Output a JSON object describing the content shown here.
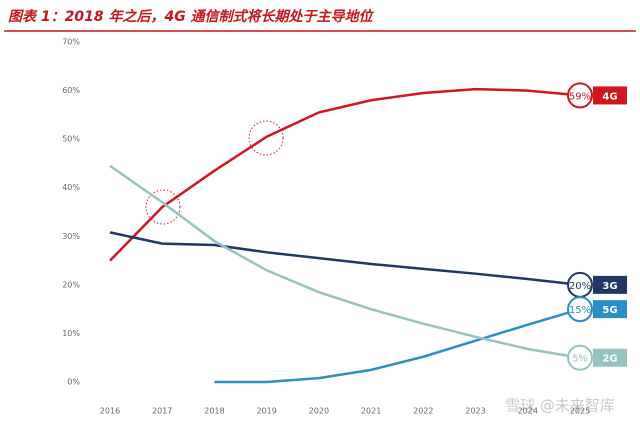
{
  "chart_data": {
    "type": "line",
    "title": "图表 1：2018 年之后，4G 通信制式将长期处于主导地位",
    "watermark": "雪球 @未来智库",
    "categories": [
      "2016",
      "2017",
      "2018",
      "2019",
      "2020",
      "2021",
      "2022",
      "2023",
      "2024",
      "2025"
    ],
    "ylim": [
      0,
      70
    ],
    "yticks": [
      {
        "value": 0,
        "label": "0%"
      },
      {
        "value": 10,
        "label": "10%"
      },
      {
        "value": 20,
        "label": "20%"
      },
      {
        "value": 30,
        "label": "30%"
      },
      {
        "value": 40,
        "label": "40%"
      },
      {
        "value": 50,
        "label": "50%"
      },
      {
        "value": 60,
        "label": "60%"
      },
      {
        "value": 70,
        "label": "70%"
      }
    ],
    "grid": false,
    "series": [
      {
        "name": "4G",
        "color": "#d0161e",
        "values": [
          25,
          36,
          43.5,
          50.5,
          55.5,
          58,
          59.5,
          60.3,
          60,
          59
        ],
        "value_labels": [
          null,
          null,
          null,
          null,
          null,
          null,
          null,
          null,
          null,
          "59%"
        ]
      },
      {
        "name": "3G",
        "color": "#1f3864",
        "values": [
          30.8,
          28.5,
          28.2,
          26.7,
          25.5,
          24.3,
          23.3,
          22.3,
          21.2,
          20
        ],
        "value_labels": [
          null,
          null,
          null,
          null,
          null,
          null,
          null,
          null,
          null,
          "20%"
        ]
      },
      {
        "name": "5G",
        "color": "#2a8fc8",
        "values": [
          null,
          null,
          0,
          0,
          0.8,
          2.5,
          5.2,
          8.5,
          11.8,
          15
        ],
        "value_labels": [
          null,
          null,
          null,
          null,
          null,
          null,
          null,
          null,
          null,
          "15%"
        ]
      },
      {
        "name": "2G",
        "color": "#95c4c0",
        "values": [
          44.5,
          37,
          29,
          23,
          18.5,
          15,
          12,
          9.3,
          6.8,
          5
        ],
        "value_labels": [
          null,
          null,
          null,
          null,
          null,
          null,
          null,
          null,
          null,
          "5%"
        ]
      }
    ]
  }
}
